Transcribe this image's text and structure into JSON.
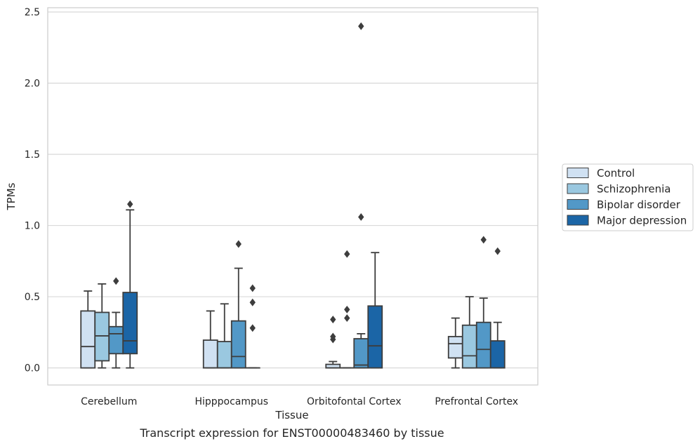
{
  "chart_data": {
    "type": "box",
    "title": "",
    "caption": "Transcript expression for ENST00000483460 by tissue",
    "xlabel": "Tissue",
    "ylabel": "TPMs",
    "ylim": [
      -0.12,
      2.53
    ],
    "yticks": [
      "0.0",
      "0.5",
      "1.0",
      "1.5",
      "2.0",
      "2.5"
    ],
    "ytick_values": [
      0,
      0.5,
      1.0,
      1.5,
      2.0,
      2.5
    ],
    "grid": "horizontal",
    "legend_position": "right",
    "categories": [
      "Cerebellum",
      "Hipppocampus",
      "Orbitofontal Cortex",
      "Prefrontal Cortex"
    ],
    "series": [
      {
        "name": "Control",
        "color": "#d0e1f2",
        "boxes": [
          {
            "whislo": 0,
            "q1": 0,
            "med": 0.15,
            "q3": 0.4,
            "whishi": 0.54,
            "fliers": []
          },
          {
            "whislo": 0,
            "q1": 0,
            "med": 0,
            "q3": 0.195,
            "whishi": 0.4,
            "fliers": []
          },
          {
            "whislo": 0,
            "q1": 0,
            "med": 0,
            "q3": 0.025,
            "whishi": 0.045,
            "fliers": [
              0.2,
              0.22,
              0.34
            ]
          },
          {
            "whislo": 0,
            "q1": 0.07,
            "med": 0.17,
            "q3": 0.22,
            "whishi": 0.35,
            "fliers": []
          }
        ]
      },
      {
        "name": "Schizophrenia",
        "color": "#9ac8e0",
        "boxes": [
          {
            "whislo": 0,
            "q1": 0.05,
            "med": 0.225,
            "q3": 0.39,
            "whishi": 0.59,
            "fliers": []
          },
          {
            "whislo": 0,
            "q1": 0,
            "med": 0,
            "q3": 0.185,
            "whishi": 0.45,
            "fliers": []
          },
          {
            "whislo": 0,
            "q1": 0,
            "med": 0,
            "q3": 0,
            "whishi": 0,
            "fliers": [
              0.35,
              0.41,
              0.8
            ]
          },
          {
            "whislo": 0,
            "q1": 0,
            "med": 0.085,
            "q3": 0.3,
            "whishi": 0.5,
            "fliers": []
          }
        ]
      },
      {
        "name": "Bipolar disorder",
        "color": "#5298c7",
        "boxes": [
          {
            "whislo": 0,
            "q1": 0.1,
            "med": 0.24,
            "q3": 0.29,
            "whishi": 0.39,
            "fliers": [
              0.61
            ]
          },
          {
            "whislo": 0,
            "q1": 0,
            "med": 0.08,
            "q3": 0.33,
            "whishi": 0.7,
            "fliers": [
              0.87
            ]
          },
          {
            "whislo": 0,
            "q1": 0,
            "med": 0.02,
            "q3": 0.205,
            "whishi": 0.24,
            "fliers": [
              1.06,
              2.4
            ]
          },
          {
            "whislo": 0,
            "q1": 0,
            "med": 0.13,
            "q3": 0.32,
            "whishi": 0.49,
            "fliers": [
              0.9
            ]
          }
        ]
      },
      {
        "name": "Major depression",
        "color": "#1b65a6",
        "boxes": [
          {
            "whislo": 0,
            "q1": 0.1,
            "med": 0.19,
            "q3": 0.53,
            "whishi": 1.11,
            "fliers": [
              1.15
            ]
          },
          {
            "whislo": 0,
            "q1": 0,
            "med": 0,
            "q3": 0,
            "whishi": 0,
            "fliers": [
              0.28,
              0.46,
              0.56
            ]
          },
          {
            "whislo": 0,
            "q1": 0,
            "med": 0.155,
            "q3": 0.435,
            "whishi": 0.81,
            "fliers": []
          },
          {
            "whislo": 0,
            "q1": 0,
            "med": 0,
            "q3": 0.19,
            "whishi": 0.32,
            "fliers": [
              0.82
            ]
          }
        ]
      }
    ]
  }
}
